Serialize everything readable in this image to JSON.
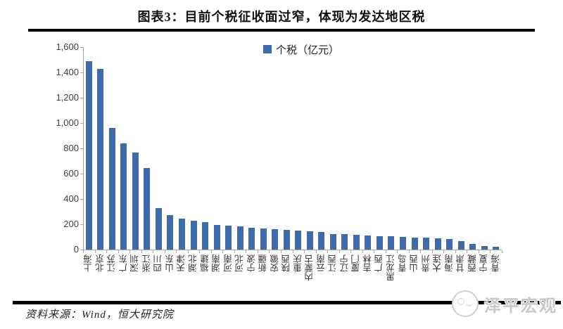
{
  "title": "图表3：目前个税征收面过窄，体现为发达地区税",
  "legend": {
    "label": "个税（亿元）"
  },
  "chart_data": {
    "type": "bar",
    "title": "图表3：目前个税征收面过窄，体现为发达地区税",
    "categories": [
      "上海",
      "北京",
      "江苏",
      "广东",
      "深圳",
      "浙江",
      "四川",
      "山东",
      "天津",
      "湖北",
      "福建",
      "湖南",
      "河南",
      "河北",
      "宁波",
      "新疆",
      "安徽",
      "陕西",
      "重庆",
      "内蒙古",
      "云南",
      "江西",
      "辽宁",
      "厦门",
      "吉林",
      "广西",
      "黑龙江",
      "青岛",
      "山西",
      "贵州",
      "大连",
      "海南",
      "甘肃",
      "西藏",
      "宁夏",
      "青海"
    ],
    "values": [
      1490,
      1430,
      960,
      840,
      765,
      645,
      330,
      270,
      245,
      230,
      215,
      195,
      188,
      183,
      170,
      165,
      160,
      156,
      152,
      145,
      140,
      125,
      120,
      115,
      110,
      107,
      105,
      100,
      95,
      93,
      88,
      84,
      64,
      42,
      30,
      25
    ],
    "series_name": "个税（亿元）",
    "xlabel": "",
    "ylabel": "个税（亿元）",
    "ylim": [
      0,
      1600
    ],
    "ytick_step": 200,
    "ytick_labels": [
      "0",
      "200",
      "400",
      "600",
      "800",
      "1,000",
      "1,200",
      "1,400",
      "1,600"
    ],
    "grid": false,
    "legend_position": "top-center",
    "bar_color": "#3E6BAC"
  },
  "footer": {
    "source": "资料来源：Wind，恒大研究院",
    "watermark": "泽平宏观"
  },
  "colors": {
    "bar": "#3E6BAC",
    "axis": "#A6A6A6",
    "rule": "#000000",
    "watermark_text": "#C9C9C9"
  }
}
